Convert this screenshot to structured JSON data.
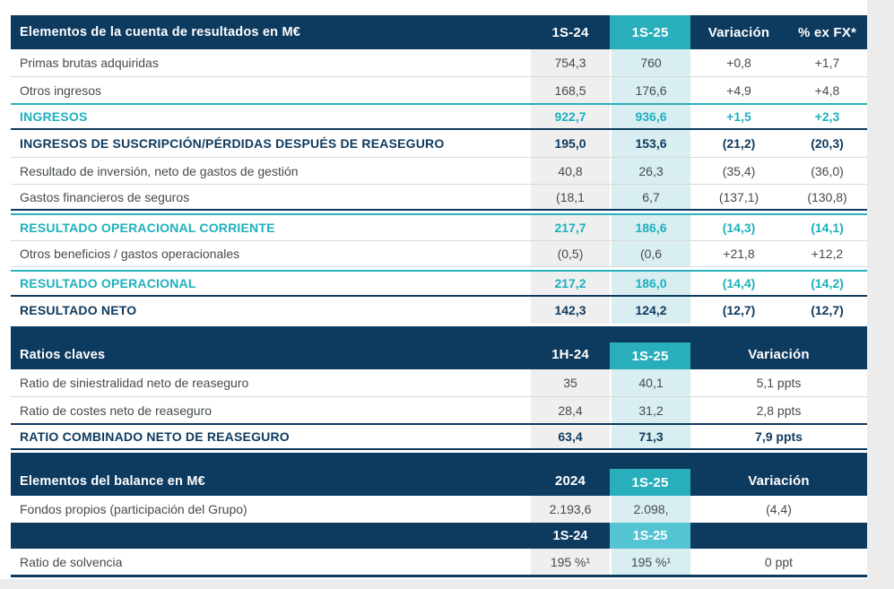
{
  "page": {
    "background": "#ffffff",
    "side_strip_color": "#ececec"
  },
  "colors": {
    "navy": "#0d3a5f",
    "teal_header": "#29aebb",
    "teal_light_column": "#d9eef1",
    "teal_mid_subheader": "#54c3d4",
    "gray_column": "#efefef",
    "teal_text": "#1db0be",
    "navy_text": "#0e3a5e",
    "body_text": "#454a4d",
    "divider_gray": "#d9d9d9"
  },
  "tables": [
    {
      "id": "income",
      "layout": "cols-5",
      "tall_header": false,
      "header": {
        "label": "Elementos de la cuenta de resultados en M€",
        "cols": [
          "1S-24",
          "1S-25",
          "Variación",
          "% ex FX*"
        ]
      },
      "rows": [
        {
          "label": "Primas brutas adquiridas",
          "values": [
            "754,3",
            "760",
            "+0,8",
            "+1,7"
          ],
          "style": "normal",
          "classes": ""
        },
        {
          "label": "Otros ingresos",
          "values": [
            "168,5",
            "176,6",
            "+4,9",
            "+4,8"
          ],
          "style": "normal",
          "classes": "bt-gray"
        },
        {
          "label": "INGRESOS",
          "values": [
            "922,7",
            "936,6",
            "+1,5",
            "+2,3"
          ],
          "style": "teal-total",
          "classes": "bt-teal bb-navy"
        },
        {
          "label": "INGRESOS DE SUSCRIPCIÓN/PÉRDIDAS DESPUÉS DE REASEGURO",
          "values": [
            "195,0",
            "153,6",
            "(21,2)",
            "(20,3)"
          ],
          "style": "navy-bold",
          "classes": ""
        },
        {
          "label": "Resultado de inversión, neto de gastos de gestión",
          "values": [
            "40,8",
            "26,3",
            "(35,4)",
            "(36,0)"
          ],
          "style": "normal",
          "classes": "bt-gray"
        },
        {
          "label": "Gastos financieros de seguros",
          "values": [
            "(18,1",
            "6,7",
            "(137,1)",
            "(130,8)"
          ],
          "style": "normal",
          "classes": "bt-gray bb-navy"
        },
        {
          "label": "RESULTADO OPERACIONAL CORRIENTE",
          "values": [
            "217,7",
            "186,6",
            "(14,3)",
            "(14,1)"
          ],
          "style": "teal-total",
          "classes": "bt-teal mt-gap"
        },
        {
          "label": "Otros beneficios / gastos operacionales",
          "values": [
            "(0,5)",
            "(0,6",
            "+21,8",
            "+12,2"
          ],
          "style": "normal",
          "classes": "bt-gray bb-gray"
        },
        {
          "label": "RESULTADO OPERACIONAL",
          "values": [
            "217,2",
            "186,0",
            "(14,4)",
            "(14,2)"
          ],
          "style": "teal-total",
          "classes": "bt-teal mt-gap bb-navy"
        },
        {
          "label": "RESULTADO NETO",
          "values": [
            "142,3",
            "124,2",
            "(12,7)",
            "(12,7)"
          ],
          "style": "navy-bold",
          "classes": ""
        }
      ]
    },
    {
      "id": "ratios",
      "layout": "cols-4",
      "tall_header": true,
      "header": {
        "label": "Ratios claves",
        "cols": [
          "1H-24",
          "1S-25",
          "Variación"
        ]
      },
      "rows": [
        {
          "label": "Ratio de siniestralidad neto de reaseguro",
          "values": [
            "35",
            "40,1",
            "5,1 ppts"
          ],
          "style": "normal",
          "classes": ""
        },
        {
          "label": "Ratio de costes neto de reaseguro",
          "values": [
            "28,4",
            "31,2",
            "2,8 ppts"
          ],
          "style": "normal",
          "classes": "bt-gray"
        },
        {
          "label": "RATIO COMBINADO NETO DE REASEGURO",
          "values": [
            "63,4",
            "71,3",
            "7,9 ppts"
          ],
          "style": "navy-bold",
          "classes": "bt-navy bb-navy"
        }
      ]
    },
    {
      "id": "balance",
      "layout": "cols-4",
      "tall_header": true,
      "header": {
        "label": "Elementos del balance en M€",
        "cols": [
          "2024",
          "1S-25",
          "Variación"
        ]
      },
      "rows": [
        {
          "label": "Fondos propios (participación del Grupo)",
          "values": [
            "2.193,6",
            "2.098,",
            "(4,4)"
          ],
          "style": "normal",
          "classes": ""
        },
        {
          "label": "",
          "values": [
            "1S-24",
            "1S-25",
            ""
          ],
          "style": "subheader",
          "classes": ""
        },
        {
          "label": "Ratio de solvencia",
          "values": [
            "195 %¹",
            "195 %¹",
            "0 ppt"
          ],
          "style": "normal tall-row",
          "classes": "bb-navy3"
        }
      ]
    }
  ]
}
